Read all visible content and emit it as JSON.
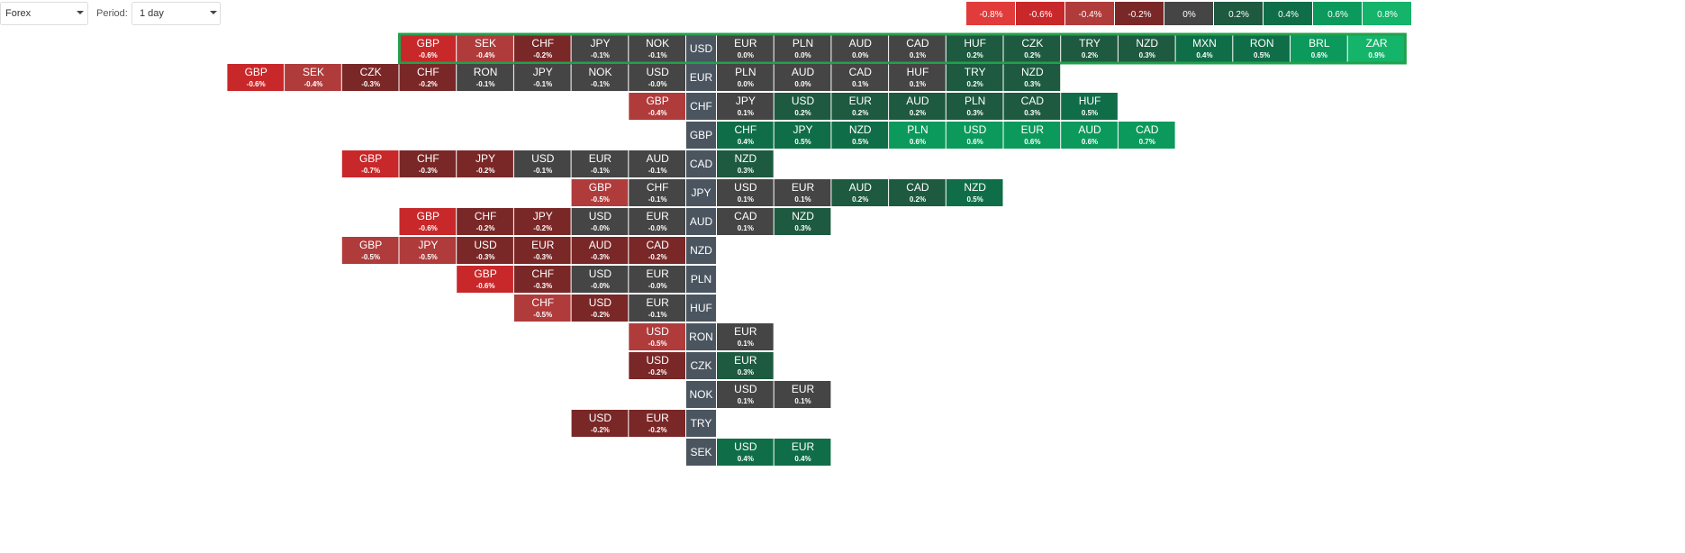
{
  "controls": {
    "market": "Forex",
    "period_label": "Period:",
    "period": "1 day"
  },
  "legend": [
    {
      "value": -0.8,
      "label": "-0.8%",
      "color": "#e23b3b"
    },
    {
      "value": -0.6,
      "label": "-0.6%",
      "color": "#c8282a"
    },
    {
      "value": -0.4,
      "label": "-0.4%",
      "color": "#b03b3b"
    },
    {
      "value": -0.2,
      "label": "-0.2%",
      "color": "#7a2727"
    },
    {
      "value": 0,
      "label": "0%",
      "color": "#454545"
    },
    {
      "value": 0.2,
      "label": "0.2%",
      "color": "#1d5a40"
    },
    {
      "value": 0.4,
      "label": "0.4%",
      "color": "#0f6e48"
    },
    {
      "value": 0.6,
      "label": "0.6%",
      "color": "#0c9a5c"
    },
    {
      "value": 0.8,
      "label": "0.8%",
      "color": "#14b46a"
    }
  ],
  "rows": [
    {
      "base": "USD",
      "highlighted": true,
      "left": [
        {
          "currency": "GBP",
          "change": {
            "value": -0.6,
            "label": "-0.6%"
          }
        },
        {
          "currency": "SEK",
          "change": {
            "value": -0.4,
            "label": "-0.4%"
          }
        },
        {
          "currency": "CHF",
          "change": {
            "value": -0.2,
            "label": "-0.2%"
          }
        },
        {
          "currency": "JPY",
          "change": {
            "value": -0.1,
            "label": "-0.1%"
          }
        },
        {
          "currency": "NOK",
          "change": {
            "value": -0.1,
            "label": "-0.1%"
          }
        }
      ],
      "right": [
        {
          "currency": "EUR",
          "change": {
            "value": 0.0,
            "label": "0.0%"
          }
        },
        {
          "currency": "PLN",
          "change": {
            "value": 0.0,
            "label": "0.0%"
          }
        },
        {
          "currency": "AUD",
          "change": {
            "value": 0.0,
            "label": "0.0%"
          }
        },
        {
          "currency": "CAD",
          "change": {
            "value": 0.1,
            "label": "0.1%"
          }
        },
        {
          "currency": "HUF",
          "change": {
            "value": 0.2,
            "label": "0.2%"
          }
        },
        {
          "currency": "CZK",
          "change": {
            "value": 0.2,
            "label": "0.2%"
          }
        },
        {
          "currency": "TRY",
          "change": {
            "value": 0.2,
            "label": "0.2%"
          }
        },
        {
          "currency": "NZD",
          "change": {
            "value": 0.3,
            "label": "0.3%"
          }
        },
        {
          "currency": "MXN",
          "change": {
            "value": 0.4,
            "label": "0.4%"
          }
        },
        {
          "currency": "RON",
          "change": {
            "value": 0.5,
            "label": "0.5%"
          }
        },
        {
          "currency": "BRL",
          "change": {
            "value": 0.6,
            "label": "0.6%"
          }
        },
        {
          "currency": "ZAR",
          "change": {
            "value": 0.9,
            "label": "0.9%"
          }
        }
      ]
    },
    {
      "base": "EUR",
      "left": [
        {
          "currency": "GBP",
          "change": {
            "value": -0.6,
            "label": "-0.6%"
          }
        },
        {
          "currency": "SEK",
          "change": {
            "value": -0.4,
            "label": "-0.4%"
          }
        },
        {
          "currency": "CZK",
          "change": {
            "value": -0.3,
            "label": "-0.3%"
          }
        },
        {
          "currency": "CHF",
          "change": {
            "value": -0.2,
            "label": "-0.2%"
          }
        },
        {
          "currency": "RON",
          "change": {
            "value": -0.1,
            "label": "-0.1%"
          }
        },
        {
          "currency": "JPY",
          "change": {
            "value": -0.1,
            "label": "-0.1%"
          }
        },
        {
          "currency": "NOK",
          "change": {
            "value": -0.1,
            "label": "-0.1%"
          }
        },
        {
          "currency": "USD",
          "change": {
            "value": -0.0,
            "label": "-0.0%"
          }
        }
      ],
      "right": [
        {
          "currency": "PLN",
          "change": {
            "value": 0.0,
            "label": "0.0%"
          }
        },
        {
          "currency": "AUD",
          "change": {
            "value": 0.0,
            "label": "0.0%"
          }
        },
        {
          "currency": "CAD",
          "change": {
            "value": 0.1,
            "label": "0.1%"
          }
        },
        {
          "currency": "HUF",
          "change": {
            "value": 0.1,
            "label": "0.1%"
          }
        },
        {
          "currency": "TRY",
          "change": {
            "value": 0.2,
            "label": "0.2%"
          }
        },
        {
          "currency": "NZD",
          "change": {
            "value": 0.3,
            "label": "0.3%"
          }
        }
      ]
    },
    {
      "base": "CHF",
      "left": [
        {
          "currency": "GBP",
          "change": {
            "value": -0.4,
            "label": "-0.4%"
          }
        }
      ],
      "right": [
        {
          "currency": "JPY",
          "change": {
            "value": 0.1,
            "label": "0.1%"
          }
        },
        {
          "currency": "USD",
          "change": {
            "value": 0.2,
            "label": "0.2%"
          }
        },
        {
          "currency": "EUR",
          "change": {
            "value": 0.2,
            "label": "0.2%"
          }
        },
        {
          "currency": "AUD",
          "change": {
            "value": 0.2,
            "label": "0.2%"
          }
        },
        {
          "currency": "PLN",
          "change": {
            "value": 0.3,
            "label": "0.3%"
          }
        },
        {
          "currency": "CAD",
          "change": {
            "value": 0.3,
            "label": "0.3%"
          }
        },
        {
          "currency": "HUF",
          "change": {
            "value": 0.5,
            "label": "0.5%"
          }
        }
      ]
    },
    {
      "base": "GBP",
      "left": [],
      "right": [
        {
          "currency": "CHF",
          "change": {
            "value": 0.4,
            "label": "0.4%"
          }
        },
        {
          "currency": "JPY",
          "change": {
            "value": 0.5,
            "label": "0.5%"
          }
        },
        {
          "currency": "NZD",
          "change": {
            "value": 0.5,
            "label": "0.5%"
          }
        },
        {
          "currency": "PLN",
          "change": {
            "value": 0.6,
            "label": "0.6%"
          }
        },
        {
          "currency": "USD",
          "change": {
            "value": 0.6,
            "label": "0.6%"
          }
        },
        {
          "currency": "EUR",
          "change": {
            "value": 0.6,
            "label": "0.6%"
          }
        },
        {
          "currency": "AUD",
          "change": {
            "value": 0.6,
            "label": "0.6%"
          }
        },
        {
          "currency": "CAD",
          "change": {
            "value": 0.7,
            "label": "0.7%"
          }
        }
      ]
    },
    {
      "base": "CAD",
      "left": [
        {
          "currency": "GBP",
          "change": {
            "value": -0.7,
            "label": "-0.7%"
          }
        },
        {
          "currency": "CHF",
          "change": {
            "value": -0.3,
            "label": "-0.3%"
          }
        },
        {
          "currency": "JPY",
          "change": {
            "value": -0.2,
            "label": "-0.2%"
          }
        },
        {
          "currency": "USD",
          "change": {
            "value": -0.1,
            "label": "-0.1%"
          }
        },
        {
          "currency": "EUR",
          "change": {
            "value": -0.1,
            "label": "-0.1%"
          }
        },
        {
          "currency": "AUD",
          "change": {
            "value": -0.1,
            "label": "-0.1%"
          }
        }
      ],
      "right": [
        {
          "currency": "NZD",
          "change": {
            "value": 0.3,
            "label": "0.3%"
          }
        }
      ]
    },
    {
      "base": "JPY",
      "left": [
        {
          "currency": "GBP",
          "change": {
            "value": -0.5,
            "label": "-0.5%"
          }
        },
        {
          "currency": "CHF",
          "change": {
            "value": -0.1,
            "label": "-0.1%"
          }
        }
      ],
      "right": [
        {
          "currency": "USD",
          "change": {
            "value": 0.1,
            "label": "0.1%"
          }
        },
        {
          "currency": "EUR",
          "change": {
            "value": 0.1,
            "label": "0.1%"
          }
        },
        {
          "currency": "AUD",
          "change": {
            "value": 0.2,
            "label": "0.2%"
          }
        },
        {
          "currency": "CAD",
          "change": {
            "value": 0.2,
            "label": "0.2%"
          }
        },
        {
          "currency": "NZD",
          "change": {
            "value": 0.5,
            "label": "0.5%"
          }
        }
      ]
    },
    {
      "base": "AUD",
      "left": [
        {
          "currency": "GBP",
          "change": {
            "value": -0.6,
            "label": "-0.6%"
          }
        },
        {
          "currency": "CHF",
          "change": {
            "value": -0.2,
            "label": "-0.2%"
          }
        },
        {
          "currency": "JPY",
          "change": {
            "value": -0.2,
            "label": "-0.2%"
          }
        },
        {
          "currency": "USD",
          "change": {
            "value": -0.0,
            "label": "-0.0%"
          }
        },
        {
          "currency": "EUR",
          "change": {
            "value": -0.0,
            "label": "-0.0%"
          }
        }
      ],
      "right": [
        {
          "currency": "CAD",
          "change": {
            "value": 0.1,
            "label": "0.1%"
          }
        },
        {
          "currency": "NZD",
          "change": {
            "value": 0.3,
            "label": "0.3%"
          }
        }
      ]
    },
    {
      "base": "NZD",
      "left": [
        {
          "currency": "GBP",
          "change": {
            "value": -0.5,
            "label": "-0.5%"
          }
        },
        {
          "currency": "JPY",
          "change": {
            "value": -0.5,
            "label": "-0.5%"
          }
        },
        {
          "currency": "USD",
          "change": {
            "value": -0.3,
            "label": "-0.3%"
          }
        },
        {
          "currency": "EUR",
          "change": {
            "value": -0.3,
            "label": "-0.3%"
          }
        },
        {
          "currency": "AUD",
          "change": {
            "value": -0.3,
            "label": "-0.3%"
          }
        },
        {
          "currency": "CAD",
          "change": {
            "value": -0.2,
            "label": "-0.2%"
          }
        }
      ],
      "right": []
    },
    {
      "base": "PLN",
      "left": [
        {
          "currency": "GBP",
          "change": {
            "value": -0.6,
            "label": "-0.6%"
          }
        },
        {
          "currency": "CHF",
          "change": {
            "value": -0.3,
            "label": "-0.3%"
          }
        },
        {
          "currency": "USD",
          "change": {
            "value": -0.0,
            "label": "-0.0%"
          }
        },
        {
          "currency": "EUR",
          "change": {
            "value": -0.0,
            "label": "-0.0%"
          }
        }
      ],
      "right": []
    },
    {
      "base": "HUF",
      "left": [
        {
          "currency": "CHF",
          "change": {
            "value": -0.5,
            "label": "-0.5%"
          }
        },
        {
          "currency": "USD",
          "change": {
            "value": -0.2,
            "label": "-0.2%"
          }
        },
        {
          "currency": "EUR",
          "change": {
            "value": -0.1,
            "label": "-0.1%"
          }
        }
      ],
      "right": []
    },
    {
      "base": "RON",
      "left": [
        {
          "currency": "USD",
          "change": {
            "value": -0.5,
            "label": "-0.5%"
          }
        }
      ],
      "right": [
        {
          "currency": "EUR",
          "change": {
            "value": 0.1,
            "label": "0.1%"
          }
        }
      ]
    },
    {
      "base": "CZK",
      "left": [
        {
          "currency": "USD",
          "change": {
            "value": -0.2,
            "label": "-0.2%"
          }
        }
      ],
      "right": [
        {
          "currency": "EUR",
          "change": {
            "value": 0.3,
            "label": "0.3%"
          }
        }
      ]
    },
    {
      "base": "NOK",
      "left": [],
      "right": [
        {
          "currency": "USD",
          "change": {
            "value": 0.1,
            "label": "0.1%"
          }
        },
        {
          "currency": "EUR",
          "change": {
            "value": 0.1,
            "label": "0.1%"
          }
        }
      ]
    },
    {
      "base": "TRY",
      "left": [
        {
          "currency": "USD",
          "change": {
            "value": -0.2,
            "label": "-0.2%"
          }
        },
        {
          "currency": "EUR",
          "change": {
            "value": -0.2,
            "label": "-0.2%"
          }
        }
      ],
      "right": []
    },
    {
      "base": "SEK",
      "left": [],
      "right": [
        {
          "currency": "USD",
          "change": {
            "value": 0.4,
            "label": "0.4%"
          }
        },
        {
          "currency": "EUR",
          "change": {
            "value": 0.4,
            "label": "0.4%"
          }
        }
      ]
    }
  ]
}
